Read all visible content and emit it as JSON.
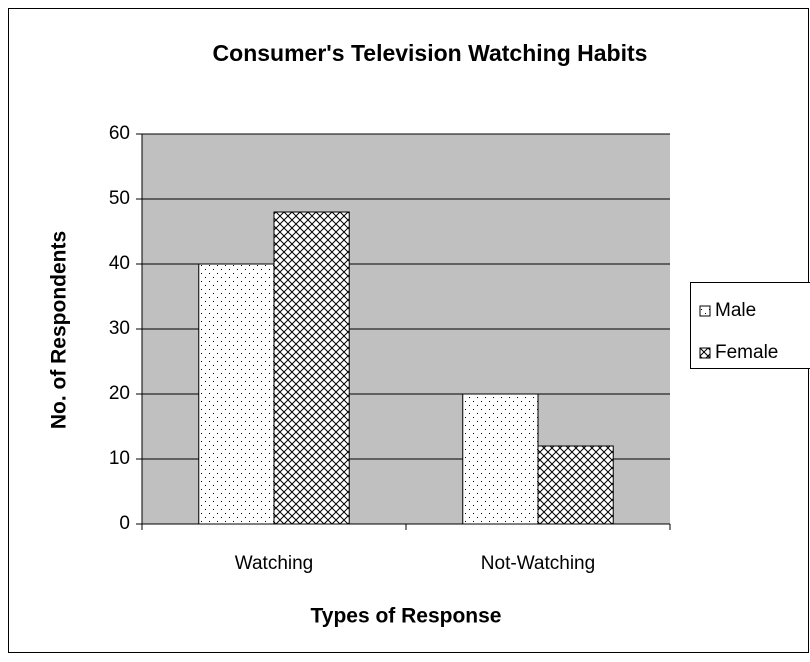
{
  "chart_data": {
    "type": "bar",
    "title": "Consumer's Television Watching Habits",
    "x_label": "Types of Response",
    "y_label": "No. of Respondents",
    "categories": [
      "Watching",
      "Not-Watching"
    ],
    "series": [
      {
        "name": "Male",
        "color": "#000000",
        "pattern": "dots",
        "values": [
          40,
          20
        ]
      },
      {
        "name": "Female",
        "color": "#000000",
        "pattern": "crosshatch",
        "values": [
          48,
          12
        ]
      }
    ],
    "ylim": [
      0,
      60
    ],
    "yticks": [
      0,
      10,
      20,
      30,
      40,
      50,
      60
    ],
    "grid": true,
    "plot_background": "#c0c0c0",
    "legend": "right"
  }
}
